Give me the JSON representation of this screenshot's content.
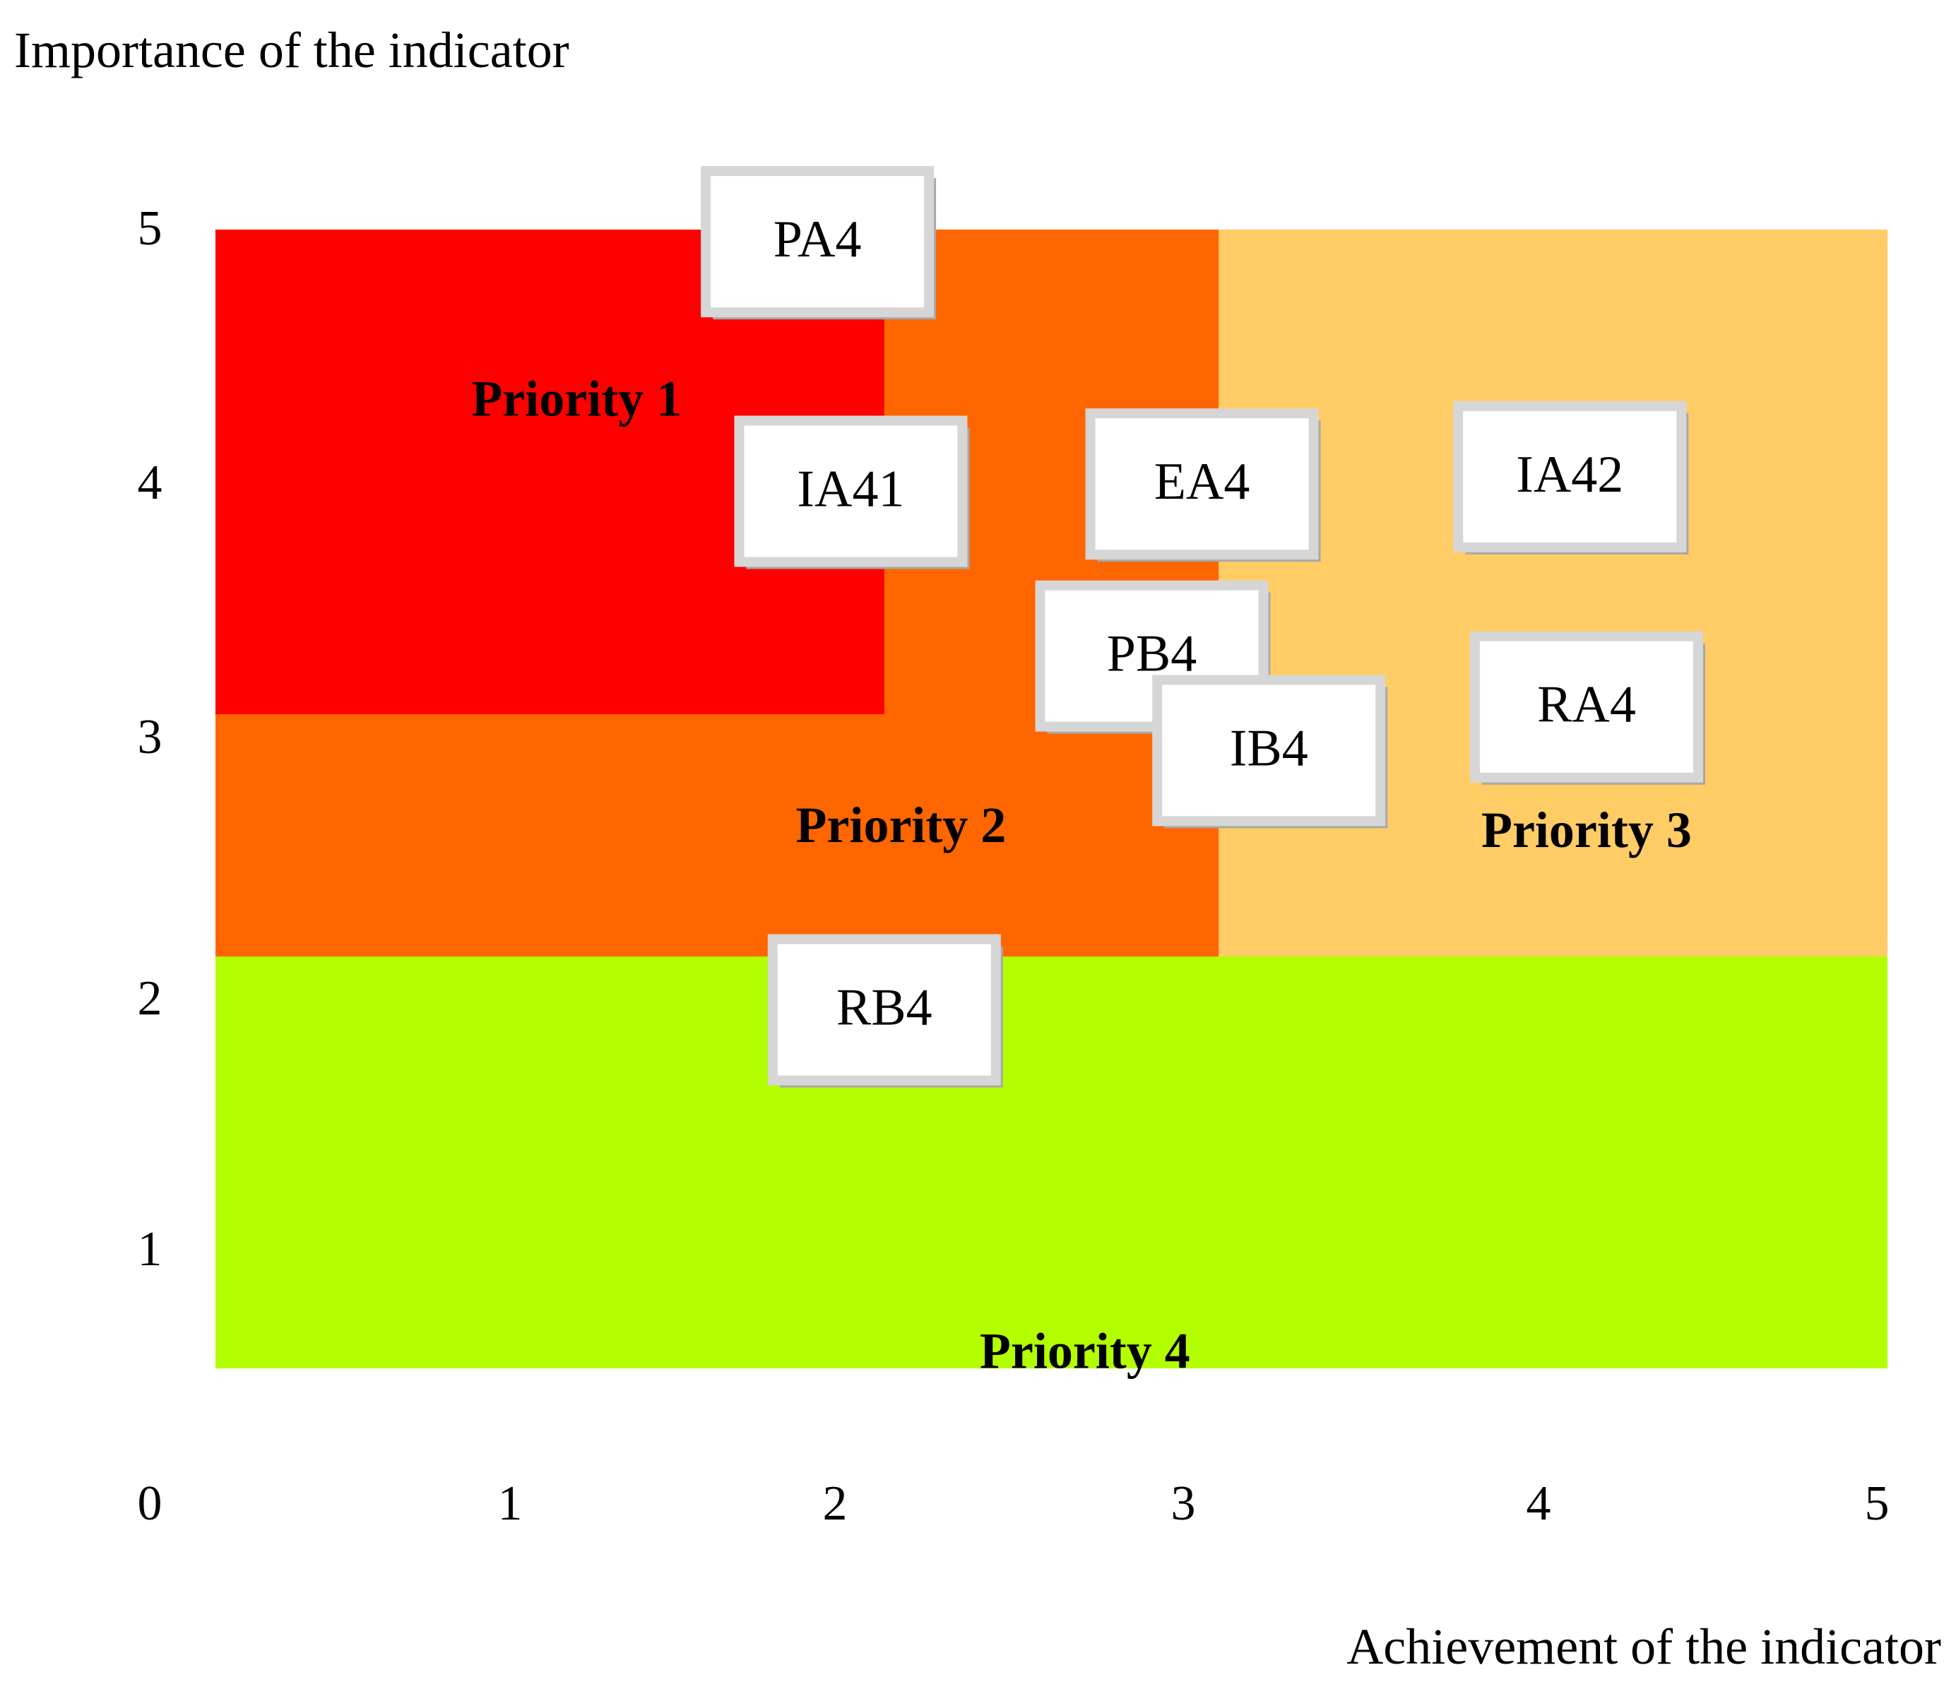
{
  "chart_data": {
    "type": "scatter",
    "title": "",
    "ylabel": "Importance of the indicator",
    "xlabel": "Achievement of the indicator",
    "xlim": [
      0,
      5
    ],
    "ylim": [
      0,
      5
    ],
    "x_ticks": [
      "0",
      "1",
      "2",
      "3",
      "4",
      "5"
    ],
    "y_ticks": [
      "1",
      "2",
      "3",
      "4",
      "5"
    ],
    "grid": false,
    "regions": [
      {
        "name": "Priority 4",
        "label": "Priority 4",
        "color": "#b3ff00",
        "x_range": [
          0,
          5
        ],
        "y_range": [
          0.3,
          2
        ],
        "label_at": [
          2.6,
          0.35
        ]
      },
      {
        "name": "Priority 3",
        "label": "Priority 3",
        "color": "#ffcc66",
        "x_range": [
          3,
          5
        ],
        "y_range": [
          2,
          5
        ],
        "label_at": [
          4.1,
          2.5
        ]
      },
      {
        "name": "Priority 2",
        "label": "Priority 2",
        "color": "#ff6600",
        "x_range": [
          0,
          3
        ],
        "y_range": [
          2,
          5
        ],
        "label_at": [
          2.05,
          2.52
        ]
      },
      {
        "name": "Priority 1",
        "label": "Priority 1",
        "color": "#ff0000",
        "x_range": [
          0,
          2
        ],
        "y_range": [
          3,
          5
        ],
        "label_at": [
          1.08,
          4.28
        ]
      }
    ],
    "points": [
      {
        "label": "PA4",
        "x": 1.8,
        "y": 4.95
      },
      {
        "label": "IA41",
        "x": 1.9,
        "y": 3.92
      },
      {
        "label": "EA4",
        "x": 2.95,
        "y": 3.95
      },
      {
        "label": "IA42",
        "x": 4.05,
        "y": 3.98
      },
      {
        "label": "PB4",
        "x": 2.8,
        "y": 3.24
      },
      {
        "label": "IB4",
        "x": 3.15,
        "y": 2.85
      },
      {
        "label": "RA4",
        "x": 4.1,
        "y": 3.03
      },
      {
        "label": "RB4",
        "x": 2.0,
        "y": 1.78
      }
    ]
  },
  "marker_colors": {
    "box": "#ffffff",
    "border": "#d6d6d6",
    "shadow": "#a8a8a8"
  }
}
